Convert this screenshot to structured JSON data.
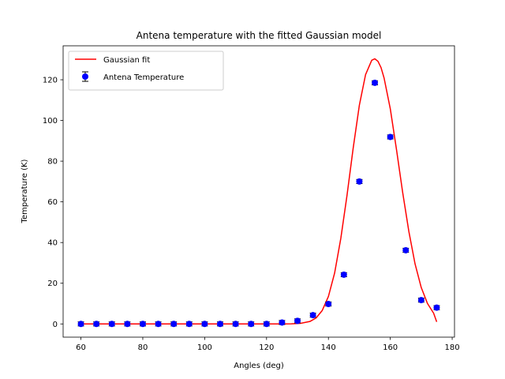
{
  "chart_data": {
    "type": "scatter",
    "title": "Antena temperature with the fitted Gaussian model",
    "xlabel": "Angles (deg)",
    "ylabel": "Temperature (K)",
    "xlim": [
      54.25,
      180.75
    ],
    "ylim": [
      -6.5,
      136.7
    ],
    "xticks": [
      60,
      80,
      100,
      120,
      140,
      160,
      180
    ],
    "yticks": [
      0,
      20,
      40,
      60,
      80,
      100,
      120
    ],
    "grid": false,
    "legend_position": "top-left",
    "series": [
      {
        "name": "Antena Temperature",
        "kind": "errorbar",
        "color": "#0000ff",
        "x": [
          60,
          65,
          70,
          75,
          80,
          85,
          90,
          95,
          100,
          105,
          110,
          115,
          120,
          125,
          130,
          135,
          140,
          145,
          150,
          155,
          160,
          165,
          170,
          175
        ],
        "y": [
          0,
          0,
          0,
          0,
          0,
          0,
          0,
          0,
          0,
          0,
          0,
          0,
          0,
          0.7,
          1.5,
          4.3,
          9.8,
          24.2,
          70.0,
          118.5,
          91.9,
          36.2,
          11.7,
          8.0
        ],
        "yerr": [
          1,
          1,
          1,
          1,
          1,
          1,
          1,
          1,
          1,
          1,
          1,
          1,
          1,
          1,
          1,
          1,
          1,
          1,
          1,
          1,
          1,
          1,
          1,
          1
        ]
      },
      {
        "name": "Gaussian fit",
        "kind": "line",
        "color": "#ff0000",
        "x": [
          60,
          65,
          70,
          75,
          80,
          85,
          90,
          95,
          100,
          105,
          110,
          115,
          120,
          125,
          128,
          131,
          134,
          136,
          138,
          140,
          142,
          144,
          146,
          148,
          150,
          152,
          154,
          155,
          156,
          157,
          158,
          160,
          162,
          164,
          166,
          168,
          170,
          172,
          174,
          175
        ],
        "y": [
          0,
          0,
          0,
          0,
          0,
          0,
          0,
          0,
          0,
          0,
          0,
          0,
          0,
          0.01,
          0.05,
          0.3,
          1.2,
          2.9,
          6.6,
          13.5,
          25.0,
          42.0,
          63.1,
          86.4,
          107.5,
          122.5,
          129.6,
          130.3,
          129.1,
          126.0,
          120.8,
          105.7,
          85.7,
          64.6,
          45.4,
          29.5,
          17.9,
          10.1,
          5.3,
          1.0
        ]
      }
    ]
  }
}
